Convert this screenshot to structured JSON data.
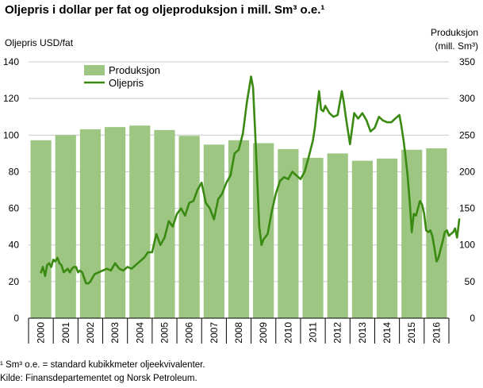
{
  "title": "Oljepris i dollar per fat og oljeproduksjon i mill. Sm³ o.e.¹",
  "footnotes": [
    "¹ Sm³ o.e. =  standard kubikkmeter  oljeekvivalenter.",
    " Kilde: Finansdepartementet og Norsk Petroleum."
  ],
  "colors": {
    "bar": "#9dc683",
    "line": "#3a8a12",
    "grid": "#c8c8c8",
    "axis": "#000000"
  },
  "chart_data": {
    "type": "bar+line",
    "ylabel_left": "Oljepris  USD/fat",
    "ylabel_right": [
      "Produksjon",
      "(mill. Sm³)"
    ],
    "ylim_left": [
      0,
      140
    ],
    "ylim_right": [
      0,
      350
    ],
    "yticks_left": [
      0,
      20,
      40,
      60,
      80,
      100,
      120,
      140
    ],
    "yticks_right": [
      0,
      50,
      100,
      150,
      200,
      250,
      300,
      350
    ],
    "grid": true,
    "legend": "top-left",
    "categories": [
      "2000",
      "2001",
      "2002",
      "2003",
      "2004",
      "2005",
      "2006",
      "2007",
      "2008",
      "2009",
      "2010",
      "2011",
      "2012",
      "2013",
      "2014",
      "2015",
      "2016"
    ],
    "series": [
      {
        "name": "Produksjon",
        "type": "bar",
        "axis": "right",
        "values": [
          243,
          250,
          258,
          261,
          263,
          257,
          249,
          237,
          243,
          239,
          231,
          219,
          225,
          215,
          218,
          230,
          232
        ]
      },
      {
        "name": "Oljepris",
        "type": "line",
        "axis": "left",
        "x": [
          2000.0,
          2000.08,
          2000.17,
          2000.25,
          2000.33,
          2000.42,
          2000.5,
          2000.58,
          2000.67,
          2000.75,
          2000.83,
          2000.92,
          2001.0,
          2001.08,
          2001.17,
          2001.25,
          2001.33,
          2001.42,
          2001.5,
          2001.58,
          2001.67,
          2001.75,
          2001.83,
          2001.92,
          2002.0,
          2002.17,
          2002.33,
          2002.5,
          2002.67,
          2002.83,
          2003.0,
          2003.17,
          2003.33,
          2003.5,
          2003.67,
          2003.83,
          2004.0,
          2004.17,
          2004.33,
          2004.5,
          2004.58,
          2004.67,
          2004.83,
          2005.0,
          2005.17,
          2005.33,
          2005.5,
          2005.67,
          2005.83,
          2006.0,
          2006.17,
          2006.33,
          2006.5,
          2006.67,
          2006.83,
          2007.0,
          2007.17,
          2007.33,
          2007.5,
          2007.67,
          2007.83,
          2008.0,
          2008.17,
          2008.33,
          2008.5,
          2008.58,
          2008.67,
          2008.75,
          2008.83,
          2008.92,
          2009.0,
          2009.17,
          2009.33,
          2009.5,
          2009.67,
          2009.83,
          2010.0,
          2010.17,
          2010.33,
          2010.5,
          2010.67,
          2010.83,
          2011.0,
          2011.08,
          2011.17,
          2011.25,
          2011.33,
          2011.42,
          2011.5,
          2011.67,
          2011.83,
          2012.0,
          2012.17,
          2012.25,
          2012.33,
          2012.5,
          2012.67,
          2012.83,
          2013.0,
          2013.17,
          2013.33,
          2013.5,
          2013.67,
          2013.83,
          2014.0,
          2014.17,
          2014.33,
          2014.5,
          2014.58,
          2014.67,
          2014.75,
          2014.83,
          2014.92,
          2015.0,
          2015.08,
          2015.17,
          2015.25,
          2015.33,
          2015.42,
          2015.5,
          2015.58,
          2015.67,
          2015.75,
          2015.83,
          2015.92,
          2016.0,
          2016.08,
          2016.17,
          2016.25,
          2016.33,
          2016.42,
          2016.5,
          2016.58,
          2016.67,
          2016.75,
          2016.83,
          2016.92
        ],
        "values": [
          25,
          28,
          23,
          29,
          30,
          28,
          32,
          31,
          33,
          30,
          29,
          25,
          26,
          27,
          25,
          27,
          28,
          28,
          25,
          26,
          25,
          22,
          19,
          19,
          20,
          24,
          25,
          26,
          27,
          26,
          30,
          27,
          26,
          28,
          27,
          29,
          31,
          33,
          36,
          36,
          41,
          46,
          40,
          44,
          53,
          50,
          57,
          60,
          56,
          63,
          64,
          70,
          74,
          63,
          60,
          54,
          65,
          68,
          74,
          78,
          90,
          92,
          101,
          118,
          132,
          126,
          100,
          75,
          50,
          40,
          43,
          46,
          58,
          68,
          75,
          77,
          76,
          80,
          78,
          76,
          80,
          88,
          97,
          104,
          115,
          124,
          114,
          113,
          116,
          112,
          110,
          111,
          124,
          118,
          110,
          95,
          112,
          109,
          112,
          108,
          102,
          104,
          110,
          108,
          107,
          107,
          109,
          111,
          105,
          97,
          88,
          78,
          63,
          47,
          57,
          56,
          60,
          64,
          62,
          57,
          48,
          47,
          48,
          45,
          38,
          31,
          33,
          38,
          42,
          47,
          48,
          45,
          46,
          47,
          49,
          44,
          54
        ]
      }
    ]
  }
}
